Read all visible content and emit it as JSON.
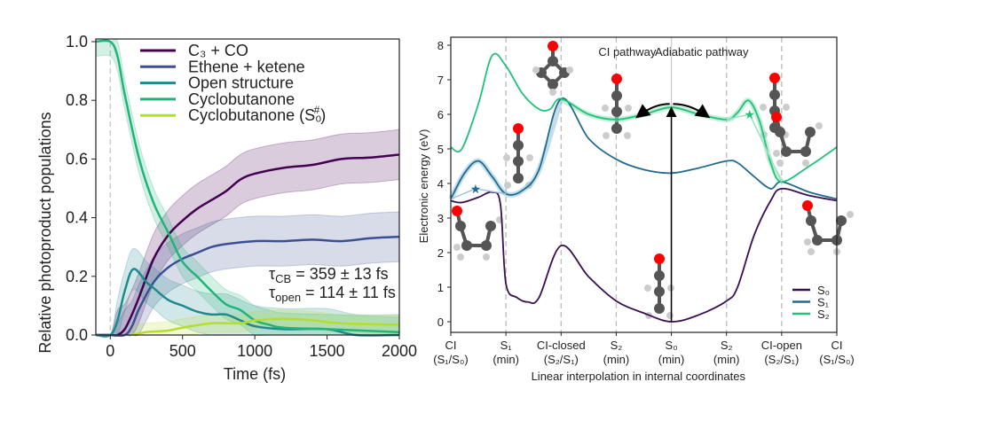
{
  "chart_data": [
    {
      "type": "line",
      "xlabel": "Time (fs)",
      "ylabel": "Relative photoproduct populations",
      "xlim": [
        -100,
        2000
      ],
      "ylim": [
        0,
        1.0
      ],
      "xticks": [
        "0",
        "500",
        "1000",
        "1500",
        "2000"
      ],
      "yticks": [
        "0.0",
        "0.2",
        "0.4",
        "0.6",
        "0.8",
        "1.0"
      ],
      "grid": false,
      "legend_placement": "top-center",
      "shaded_uncertainty_bands": true,
      "annotations": [
        {
          "symbol": "τ",
          "sub": "CB",
          "text": " = 359 ± 13 fs"
        },
        {
          "symbol": "τ",
          "sub": "open",
          "text": " = 114 ± 11 fs"
        }
      ],
      "series": [
        {
          "name": "C₃ + CO",
          "color": "#440154",
          "band_halfwidth": 0.085,
          "x": [
            -100,
            0,
            50,
            100,
            150,
            200,
            300,
            400,
            500,
            600,
            700,
            800,
            900,
            1000,
            1200,
            1400,
            1600,
            1800,
            2000
          ],
          "y": [
            0,
            0,
            0,
            0.02,
            0.07,
            0.13,
            0.26,
            0.34,
            0.39,
            0.43,
            0.46,
            0.49,
            0.53,
            0.55,
            0.57,
            0.58,
            0.6,
            0.605,
            0.615
          ]
        },
        {
          "name": "Ethene + ketene",
          "color": "#3b4f93",
          "band_halfwidth": 0.085,
          "x": [
            -100,
            0,
            100,
            150,
            200,
            300,
            400,
            500,
            600,
            700,
            800,
            1000,
            1200,
            1400,
            1600,
            1800,
            2000
          ],
          "y": [
            0,
            0,
            0,
            0.03,
            0.09,
            0.18,
            0.23,
            0.26,
            0.28,
            0.3,
            0.31,
            0.32,
            0.32,
            0.325,
            0.32,
            0.33,
            0.335
          ]
        },
        {
          "name": "Open structure",
          "color": "#1f8a8e",
          "band_halfwidth": 0.07,
          "x": [
            -100,
            0,
            50,
            100,
            160,
            250,
            300,
            400,
            500,
            600,
            700,
            800,
            900,
            1000,
            1200,
            1500,
            1700,
            2000
          ],
          "y": [
            0,
            0,
            0.05,
            0.15,
            0.225,
            0.18,
            0.16,
            0.12,
            0.1,
            0.08,
            0.07,
            0.07,
            0.05,
            0.03,
            0.02,
            0.02,
            0.0,
            0.0
          ]
        },
        {
          "name": "Cyclobutanone",
          "color": "#22b37a",
          "band_halfwidth": 0.05,
          "x": [
            -100,
            0,
            50,
            100,
            200,
            300,
            400,
            500,
            600,
            700,
            800,
            900,
            1000,
            1100,
            1200,
            1500,
            2000
          ],
          "y": [
            1.0,
            1.0,
            0.95,
            0.82,
            0.6,
            0.45,
            0.35,
            0.25,
            0.2,
            0.15,
            0.105,
            0.085,
            0.05,
            0.035,
            0.025,
            0.02,
            0.01
          ]
        },
        {
          "name": "Cyclobutanone (S₀",
          "name_sup": "#",
          "name_end": ")",
          "color": "#b5de2b",
          "band_halfwidth": 0.03,
          "x": [
            150,
            250,
            400,
            500,
            700,
            900,
            1000,
            1200,
            1400,
            1600,
            2000
          ],
          "y": [
            0.0,
            0.01,
            0.015,
            0.025,
            0.04,
            0.04,
            0.05,
            0.055,
            0.05,
            0.04,
            0.035
          ]
        }
      ]
    },
    {
      "type": "line",
      "xlabel": "Linear interpolation in internal coordinates",
      "ylabel": "Electronic energy (eV)",
      "ylim": [
        -0.3,
        8.3
      ],
      "yticks": [
        "0",
        "1",
        "2",
        "3",
        "4",
        "5",
        "6",
        "7",
        "8"
      ],
      "categories": [
        [
          "CI",
          "(S₁/S₀)"
        ],
        [
          "S₁",
          "(min)"
        ],
        [
          "CI-closed",
          "(S₂/S₁)"
        ],
        [
          "S₂",
          "(min)"
        ],
        [
          "S₀",
          "(min)"
        ],
        [
          "S₂",
          "(min)"
        ],
        [
          "CI-open",
          "(S₂/S₁)"
        ],
        [
          "CI",
          "(S₁/S₀)"
        ]
      ],
      "region_labels": [
        "CI pathway",
        "Adiabatic pathway"
      ],
      "legend_placement": "lower-right",
      "grid": false,
      "series": [
        {
          "name": "S₀",
          "color": "#3b0f4f",
          "x": [
            0,
            0.2,
            0.5,
            0.75,
            0.9,
            1.0,
            1.2,
            1.4,
            1.6,
            2.0,
            2.5,
            3.0,
            3.5,
            4.0,
            4.5,
            5.0,
            5.2,
            5.5,
            5.8,
            6.0,
            6.5,
            7.0
          ],
          "y": [
            3.5,
            3.45,
            3.6,
            3.75,
            3.4,
            1.1,
            0.7,
            0.57,
            0.7,
            2.2,
            1.3,
            0.6,
            0.25,
            0.0,
            0.2,
            0.6,
            1.0,
            2.5,
            3.5,
            3.85,
            3.65,
            3.5
          ]
        },
        {
          "name": "S₁",
          "color": "#1f6b8e",
          "x": [
            0,
            0.25,
            0.5,
            0.75,
            1.0,
            1.3,
            1.6,
            2.0,
            2.5,
            3.0,
            3.5,
            4.0,
            4.5,
            5.0,
            5.2,
            5.5,
            5.8,
            6.0,
            6.5,
            7.0
          ],
          "y": [
            3.55,
            4.3,
            4.65,
            4.2,
            3.7,
            3.8,
            4.4,
            6.45,
            5.3,
            4.7,
            4.4,
            4.3,
            4.45,
            4.65,
            4.6,
            4.2,
            3.85,
            4.05,
            3.75,
            3.55
          ]
        },
        {
          "name": "S₂",
          "color": "#22c17a",
          "x": [
            0,
            0.2,
            0.5,
            0.75,
            1.0,
            1.3,
            1.6,
            1.8,
            2.0,
            2.5,
            3.0,
            3.5,
            4.0,
            4.5,
            5.0,
            5.2,
            5.4,
            5.6,
            5.8,
            6.0,
            6.5,
            7.0
          ],
          "y": [
            5.05,
            5.0,
            6.3,
            7.7,
            7.4,
            6.6,
            6.15,
            6.15,
            6.45,
            6.0,
            5.85,
            6.0,
            6.2,
            6.0,
            5.85,
            6.05,
            6.4,
            5.8,
            4.6,
            4.05,
            4.5,
            5.05
          ]
        }
      ],
      "markers": [
        {
          "shape": "star",
          "state": "S₁",
          "x": 0.45,
          "y": 3.85
        },
        {
          "shape": "star",
          "state": "S₂",
          "x": 5.42,
          "y": 6.0
        }
      ],
      "arrows": [
        {
          "from": [
            4,
            0
          ],
          "to": [
            4,
            6.15
          ]
        },
        {
          "from": [
            3.97,
            6.3
          ],
          "to": [
            3.4,
            5.95
          ]
        },
        {
          "from": [
            4.03,
            6.3
          ],
          "to": [
            4.65,
            5.95
          ]
        }
      ]
    }
  ]
}
